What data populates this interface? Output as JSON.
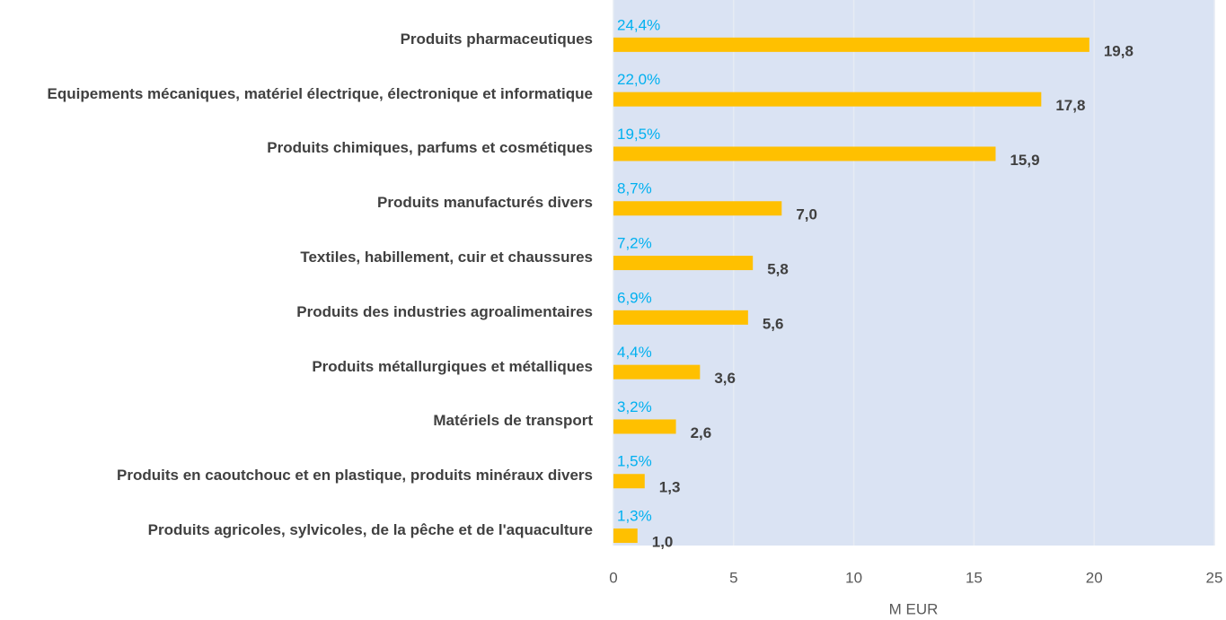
{
  "chart_data": {
    "type": "bar",
    "orientation": "horizontal",
    "categories": [
      "Produits pharmaceutiques",
      "Equipements mécaniques, matériel électrique, électronique et informatique",
      "Produits chimiques, parfums et cosmétiques",
      "Produits manufacturés divers",
      "Textiles, habillement, cuir et chaussures",
      "Produits des industries agroalimentaires",
      "Produits métallurgiques et métalliques",
      "Matériels de transport",
      "Produits en caoutchouc et en plastique, produits minéraux divers",
      "Produits agricoles, sylvicoles, de la pêche et de l'aquaculture"
    ],
    "values": [
      19.8,
      17.8,
      15.9,
      7.0,
      5.8,
      5.6,
      3.6,
      2.6,
      1.3,
      1.0
    ],
    "value_labels": [
      "19,8",
      "17,8",
      "15,9",
      "7,0",
      "5,8",
      "5,6",
      "3,6",
      "2,6",
      "1,3",
      "1,0"
    ],
    "shares": [
      24.4,
      22.0,
      19.5,
      8.7,
      7.2,
      6.9,
      4.4,
      3.2,
      1.5,
      1.3
    ],
    "share_labels": [
      "24,4%",
      "22,0%",
      "19,5%",
      "8,7%",
      "7,2%",
      "6,9%",
      "4,4%",
      "3,2%",
      "1,5%",
      "1,3%"
    ],
    "color": "#ffc000",
    "share_color": "#00b0f0",
    "xlabel": "M EUR",
    "xlim": [
      0,
      25
    ],
    "xticks": [
      0,
      5,
      10,
      15,
      20,
      25
    ],
    "grid": true
  }
}
